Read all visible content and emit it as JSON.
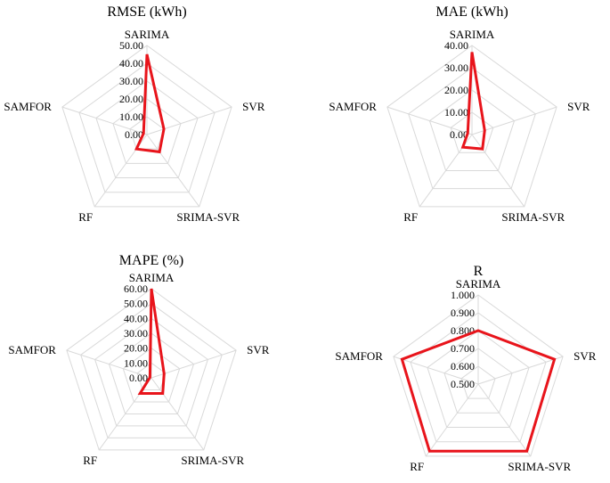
{
  "chart_data": [
    {
      "type": "radar",
      "title": "RMSE (kWh)",
      "categories": [
        "SARIMA",
        "SVR",
        "SRIMA-SVR",
        "RF",
        "SAMFOR"
      ],
      "ticks": [
        "0.00",
        "10.00",
        "20.00",
        "30.00",
        "40.00",
        "50.00"
      ],
      "rmin": 0,
      "rmax": 50,
      "series": [
        {
          "values": [
            45,
            10,
            12,
            10,
            2
          ],
          "color": "#e8141b"
        }
      ]
    },
    {
      "type": "radar",
      "title": "MAE (kWh)",
      "categories": [
        "SARIMA",
        "SVR",
        "SRIMA-SVR",
        "RF",
        "SAMFOR"
      ],
      "ticks": [
        "0.00",
        "10.00",
        "20.00",
        "30.00",
        "40.00"
      ],
      "rmin": 0,
      "rmax": 40,
      "series": [
        {
          "values": [
            37,
            6,
            8,
            7,
            2
          ],
          "color": "#e8141b"
        }
      ]
    },
    {
      "type": "radar",
      "title": "MAPE (%)",
      "categories": [
        "SARIMA",
        "SVR",
        "SRIMA-SVR",
        "RF",
        "SAMFOR"
      ],
      "ticks": [
        "0.00",
        "10.00",
        "20.00",
        "30.00",
        "40.00",
        "50.00",
        "60.00"
      ],
      "rmin": 0,
      "rmax": 60,
      "series": [
        {
          "values": [
            60,
            9,
            13,
            13,
            1
          ],
          "color": "#e8141b"
        }
      ]
    },
    {
      "type": "radar",
      "title": "R",
      "categories": [
        "SARIMA",
        "SVR",
        "SRIMA-SVR",
        "RF",
        "SAMFOR"
      ],
      "ticks": [
        "0.500",
        "0.600",
        "0.700",
        "0.800",
        "0.900",
        "1.000"
      ],
      "rmin": 0.5,
      "rmax": 1.0,
      "series": [
        {
          "values": [
            0.8,
            0.95,
            0.965,
            0.965,
            0.95
          ],
          "color": "#e8141b"
        }
      ]
    }
  ]
}
